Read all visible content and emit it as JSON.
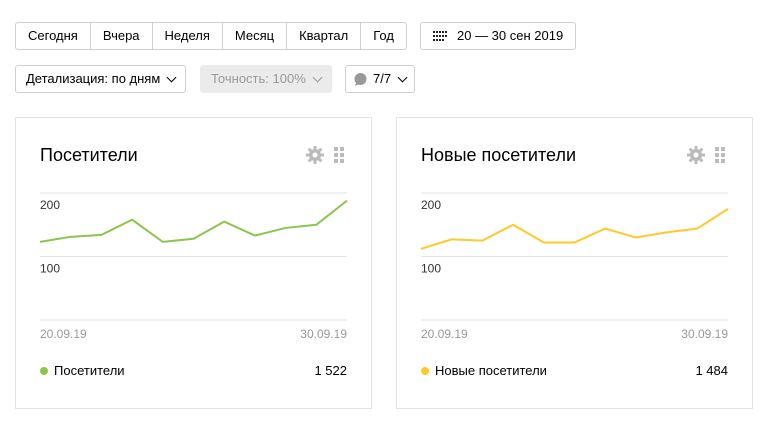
{
  "periods": [
    "Сегодня",
    "Вчера",
    "Неделя",
    "Месяц",
    "Квартал",
    "Год"
  ],
  "date_range": "20 — 30 сен 2019",
  "detail": "Детализация: по дням",
  "accuracy": "Точность: 100%",
  "segments": "7/7",
  "cards": [
    {
      "title": "Посетители",
      "color": "#8ac64c",
      "legend": "Посетители",
      "total": "1 522",
      "date_start": "20.09.19",
      "date_end": "30.09.19",
      "y_ticks": [
        "200",
        "100"
      ],
      "values": [
        123,
        131,
        134,
        158,
        123,
        128,
        155,
        133,
        145,
        150,
        188
      ]
    },
    {
      "title": "Новые посетители",
      "color": "#ffc927",
      "legend": "Новые посетители",
      "total": "1 484",
      "date_start": "20.09.19",
      "date_end": "30.09.19",
      "y_ticks": [
        "200",
        "100"
      ],
      "values": [
        112,
        127,
        125,
        150,
        122,
        122,
        144,
        130,
        138,
        144,
        175
      ]
    }
  ]
}
